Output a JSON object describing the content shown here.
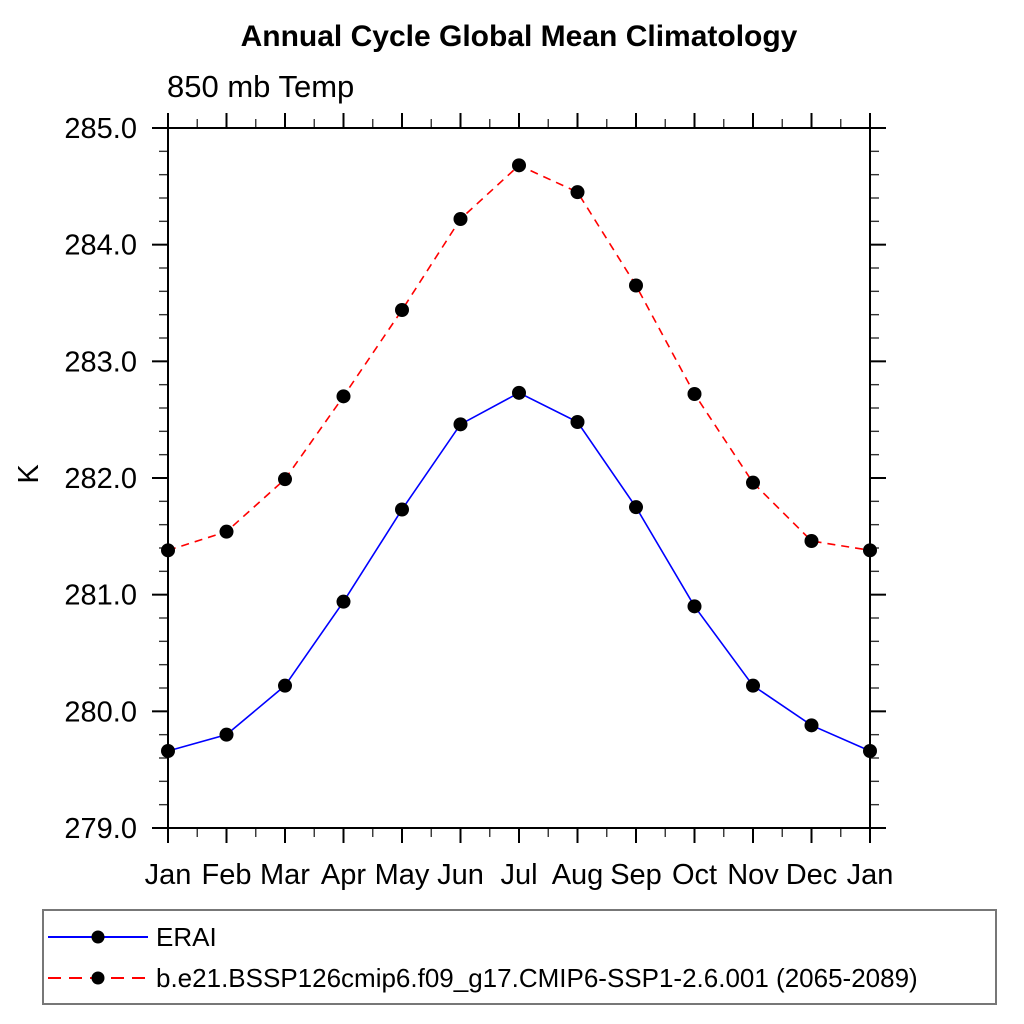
{
  "header": {
    "title": "Annual Cycle Global Mean Climatology",
    "subtitle": "850 mb Temp"
  },
  "chart_data": {
    "type": "line",
    "title": "Annual Cycle Global Mean Climatology",
    "subtitle": "850 mb Temp",
    "ylabel": "K",
    "xlabel": "",
    "x_tick_labels": [
      "Jan",
      "Feb",
      "Mar",
      "Apr",
      "May",
      "Jun",
      "Jul",
      "Aug",
      "Sep",
      "Oct",
      "Nov",
      "Dec",
      "Jan"
    ],
    "y_tick_labels": [
      "279.0",
      "280.0",
      "281.0",
      "282.0",
      "283.0",
      "284.0",
      "285.0"
    ],
    "ylim": [
      279.0,
      285.0
    ],
    "y_major_step": 1.0,
    "y_minor_step": 0.2,
    "grid": false,
    "legend_position": "bottom-left-box",
    "axis_color": "#000000",
    "marker": "filled-circle",
    "marker_color": "#000000",
    "series": [
      {
        "name": "ERAI",
        "color": "#0000ff",
        "line_style": "solid",
        "values": [
          279.66,
          279.8,
          280.22,
          280.94,
          281.73,
          282.46,
          282.73,
          282.48,
          281.75,
          280.9,
          280.22,
          279.88,
          279.66
        ]
      },
      {
        "name": "b.e21.BSSP126cmip6.f09_g17.CMIP6-SSP1-2.6.001 (2065-2089)",
        "color": "#ff0000",
        "line_style": "dashed",
        "values": [
          281.38,
          281.54,
          281.99,
          282.7,
          283.44,
          284.22,
          284.68,
          284.45,
          283.65,
          282.72,
          281.96,
          281.46,
          281.38
        ]
      }
    ]
  }
}
